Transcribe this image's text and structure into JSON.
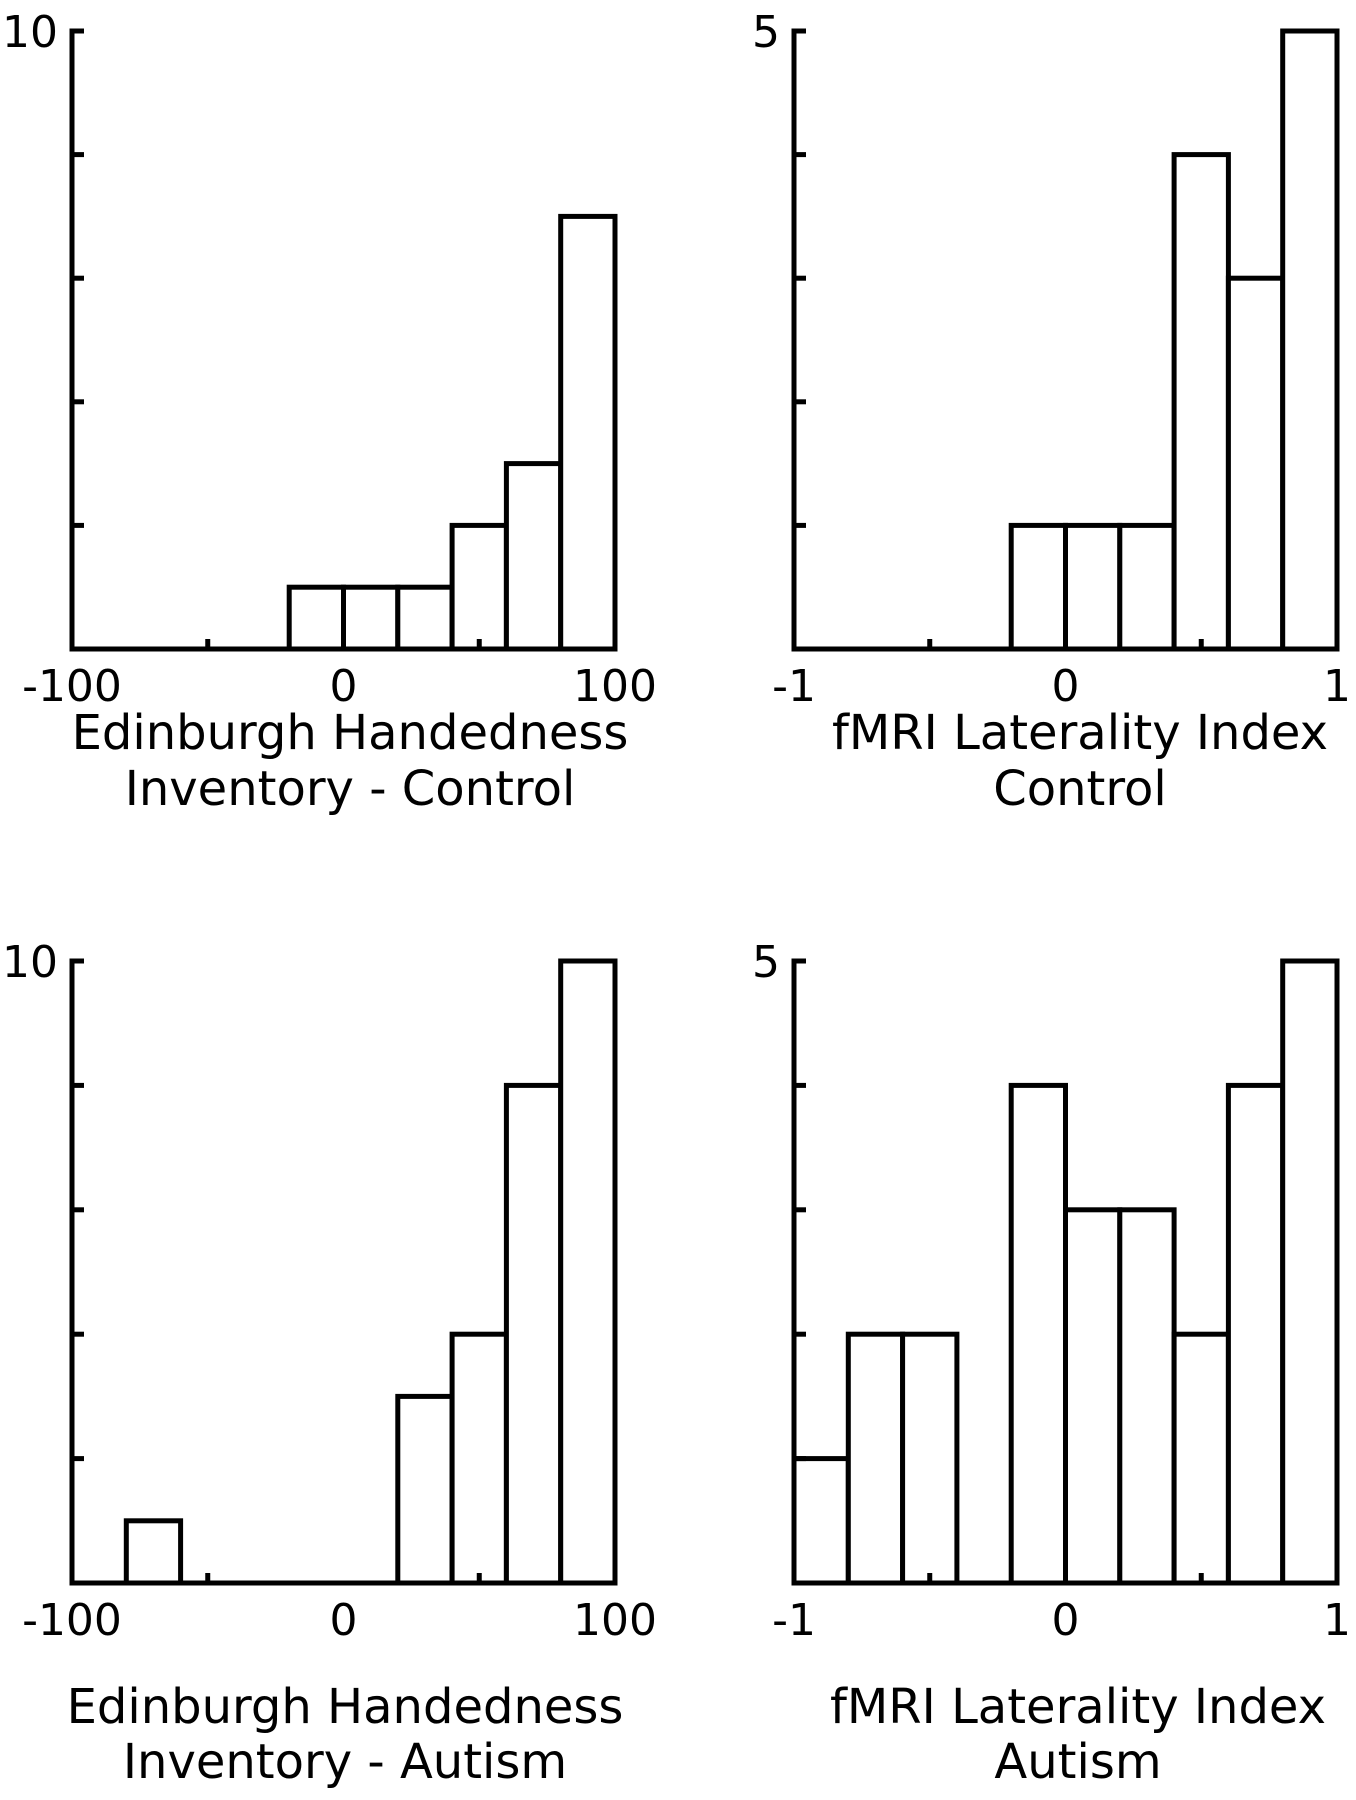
{
  "chart_data": [
    {
      "type": "bar",
      "histogram": true,
      "title": "",
      "xlabel": [
        "Edinburgh Handedness",
        "Inventory - Control"
      ],
      "ylabel": "",
      "xlim": [
        -100,
        100
      ],
      "ylim": [
        0,
        10
      ],
      "xtick_labels": [
        "-100",
        "0",
        "100"
      ],
      "ytick_labels": [
        "10"
      ],
      "bin_width": 20,
      "bins": [
        {
          "start": -20,
          "count": 1
        },
        {
          "start": 0,
          "count": 1
        },
        {
          "start": 20,
          "count": 1
        },
        {
          "start": 40,
          "count": 2
        },
        {
          "start": 60,
          "count": 3
        },
        {
          "start": 80,
          "count": 7
        }
      ]
    },
    {
      "type": "bar",
      "histogram": true,
      "title": "",
      "xlabel": [
        "fMRI Laterality Index",
        "Control"
      ],
      "ylabel": "",
      "xlim": [
        -1,
        1
      ],
      "ylim": [
        0,
        5
      ],
      "xtick_labels": [
        "-1",
        "0",
        "1"
      ],
      "ytick_labels": [
        "5"
      ],
      "bin_width": 0.2,
      "bins": [
        {
          "start": -0.2,
          "count": 1
        },
        {
          "start": 0.0,
          "count": 1
        },
        {
          "start": 0.2,
          "count": 1
        },
        {
          "start": 0.4,
          "count": 4
        },
        {
          "start": 0.6,
          "count": 3
        },
        {
          "start": 0.8,
          "count": 5
        }
      ]
    },
    {
      "type": "bar",
      "histogram": true,
      "title": "",
      "xlabel": [
        "Edinburgh Handedness",
        "Inventory - Autism"
      ],
      "ylabel": "",
      "xlim": [
        -100,
        100
      ],
      "ylim": [
        0,
        10
      ],
      "xtick_labels": [
        "-100",
        "0",
        "100"
      ],
      "ytick_labels": [
        "10"
      ],
      "bin_width": 20,
      "bins": [
        {
          "start": -80,
          "count": 1
        },
        {
          "start": 20,
          "count": 3
        },
        {
          "start": 40,
          "count": 4
        },
        {
          "start": 60,
          "count": 8
        },
        {
          "start": 80,
          "count": 10
        }
      ]
    },
    {
      "type": "bar",
      "histogram": true,
      "title": "",
      "xlabel": [
        "fMRI Laterality Index",
        "Autism"
      ],
      "ylabel": "",
      "xlim": [
        -1,
        1
      ],
      "ylim": [
        0,
        5
      ],
      "xtick_labels": [
        "-1",
        "0",
        "1"
      ],
      "ytick_labels": [
        "5"
      ],
      "bin_width": 0.2,
      "bins": [
        {
          "start": -1.0,
          "count": 1
        },
        {
          "start": -0.8,
          "count": 2
        },
        {
          "start": -0.6,
          "count": 2
        },
        {
          "start": -0.2,
          "count": 4
        },
        {
          "start": 0.0,
          "count": 3
        },
        {
          "start": 0.2,
          "count": 3
        },
        {
          "start": 0.4,
          "count": 2
        },
        {
          "start": 0.6,
          "count": 4
        },
        {
          "start": 0.8,
          "count": 5
        }
      ]
    }
  ]
}
